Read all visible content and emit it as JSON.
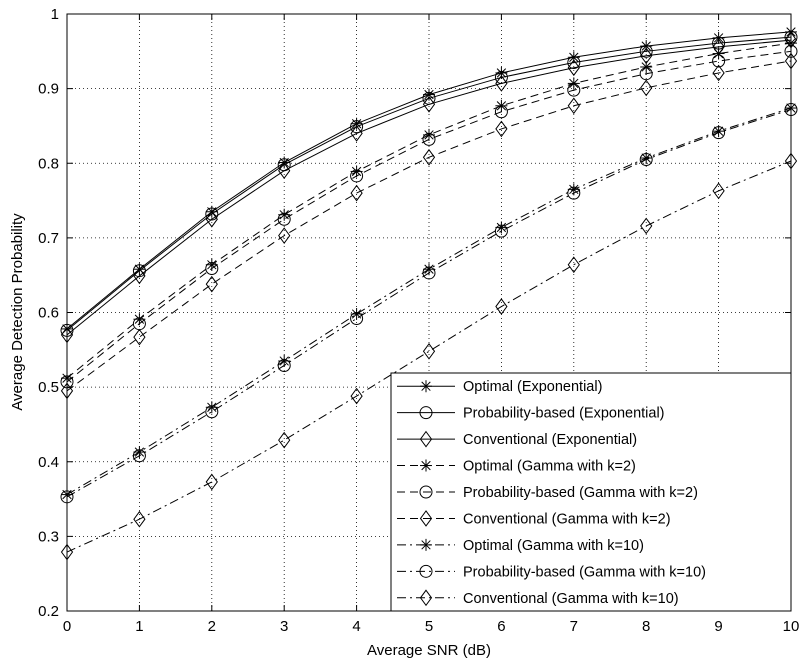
{
  "chart_data": {
    "type": "line",
    "title": "",
    "xlabel": "Average SNR (dB)",
    "ylabel": "Average Detection Probability",
    "xlim": [
      0,
      10
    ],
    "ylim": [
      0.2,
      1
    ],
    "xticks": [
      "0",
      "1",
      "2",
      "3",
      "4",
      "5",
      "6",
      "7",
      "8",
      "9",
      "10"
    ],
    "yticks": [
      "0.2",
      "0.3",
      "0.4",
      "0.5",
      "0.6",
      "0.7",
      "0.8",
      "0.9",
      "1"
    ],
    "grid": true,
    "legend_position": "bottom-right",
    "x": [
      0,
      1,
      2,
      3,
      4,
      5,
      6,
      7,
      8,
      9,
      10
    ],
    "series": [
      {
        "name": "Optimal (Exponential)",
        "line": "solid",
        "marker": "star",
        "color": "#000000",
        "values": [
          0.578,
          0.658,
          0.735,
          0.801,
          0.853,
          0.892,
          0.921,
          0.942,
          0.957,
          0.968,
          0.976
        ]
      },
      {
        "name": "Probability-based (Exponential)",
        "line": "solid",
        "marker": "circle",
        "color": "#000000",
        "values": [
          0.576,
          0.656,
          0.732,
          0.798,
          0.849,
          0.887,
          0.915,
          0.935,
          0.95,
          0.961,
          0.969
        ]
      },
      {
        "name": "Conventional (Exponential)",
        "line": "solid",
        "marker": "diamond",
        "color": "#000000",
        "values": [
          0.57,
          0.649,
          0.725,
          0.79,
          0.84,
          0.879,
          0.907,
          0.928,
          0.944,
          0.956,
          0.965
        ]
      },
      {
        "name": "Optimal (Gamma with k=2)",
        "line": "dashed",
        "marker": "star",
        "color": "#000000",
        "values": [
          0.512,
          0.591,
          0.664,
          0.731,
          0.789,
          0.838,
          0.877,
          0.907,
          0.929,
          0.947,
          0.961
        ]
      },
      {
        "name": "Probability-based (Gamma with k=2)",
        "line": "dashed",
        "marker": "circle",
        "color": "#000000",
        "values": [
          0.507,
          0.585,
          0.659,
          0.725,
          0.783,
          0.832,
          0.869,
          0.898,
          0.92,
          0.937,
          0.95
        ]
      },
      {
        "name": "Conventional (Gamma with k=2)",
        "line": "dashed",
        "marker": "diamond",
        "color": "#000000",
        "values": [
          0.495,
          0.567,
          0.638,
          0.703,
          0.76,
          0.808,
          0.846,
          0.877,
          0.901,
          0.921,
          0.937
        ]
      },
      {
        "name": "Optimal (Gamma with k=10)",
        "line": "dashdot",
        "marker": "star",
        "color": "#000000",
        "values": [
          0.356,
          0.413,
          0.473,
          0.535,
          0.598,
          0.658,
          0.714,
          0.765,
          0.807,
          0.843,
          0.874
        ]
      },
      {
        "name": "Probability-based (Gamma with k=10)",
        "line": "dashdot",
        "marker": "circle",
        "color": "#000000",
        "values": [
          0.353,
          0.408,
          0.467,
          0.529,
          0.592,
          0.653,
          0.709,
          0.76,
          0.805,
          0.841,
          0.872
        ]
      },
      {
        "name": "Conventional (Gamma with k=10)",
        "line": "dashdot",
        "marker": "diamond",
        "color": "#000000",
        "values": [
          0.279,
          0.323,
          0.373,
          0.429,
          0.488,
          0.548,
          0.608,
          0.664,
          0.716,
          0.763,
          0.803
        ]
      }
    ]
  }
}
